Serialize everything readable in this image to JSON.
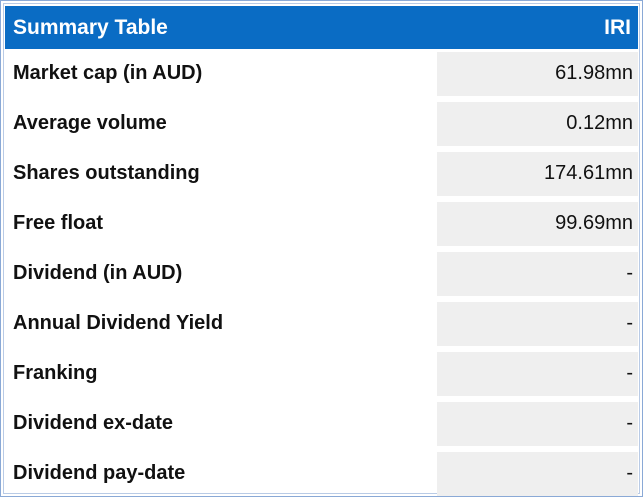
{
  "table": {
    "title": "Summary Table",
    "ticker": "IRI",
    "rows": [
      {
        "label": "Market cap (in AUD)",
        "value": "61.98mn"
      },
      {
        "label": "Average volume",
        "value": "0.12mn"
      },
      {
        "label": "Shares outstanding",
        "value": "174.61mn"
      },
      {
        "label": "Free float",
        "value": "99.69mn"
      },
      {
        "label": "Dividend (in AUD)",
        "value": "-"
      },
      {
        "label": "Annual Dividend Yield",
        "value": "-"
      },
      {
        "label": "Franking",
        "value": "-"
      },
      {
        "label": "Dividend ex-date",
        "value": "-"
      },
      {
        "label": "Dividend pay-date",
        "value": "-"
      }
    ]
  },
  "colors": {
    "header_background": "#0a6cc4",
    "header_text": "#ffffff",
    "value_cell_background": "#efefef",
    "border": "#8aa9d6"
  }
}
